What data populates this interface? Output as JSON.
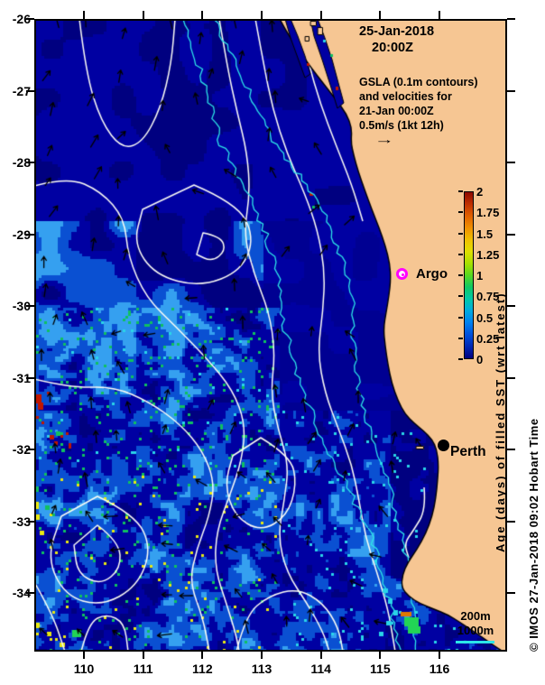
{
  "figure": {
    "kind": "satellite SST-age map with GSLA contours and velocity vectors",
    "region": "Western Australia coast near Perth"
  },
  "title": {
    "line1": "25-Jan-2018",
    "line2": "20:00Z"
  },
  "annotation": {
    "lines": [
      "GSLA (0.1m contours)",
      "and velocities for",
      "21-Jan 00:00Z",
      "0.5m/s (1kt 12h)"
    ],
    "arrow_symbol": "→"
  },
  "axes": {
    "lat_tick_labels": [
      "-26",
      "-27",
      "-28",
      "-29",
      "-30",
      "-31",
      "-32",
      "-33",
      "-34"
    ],
    "lon_tick_labels": [
      "110",
      "111",
      "112",
      "113",
      "114",
      "115",
      "116"
    ],
    "lat_range": [
      -26,
      -34.8
    ],
    "lon_range": [
      109.2,
      117.1
    ]
  },
  "colorbar": {
    "label": "Age (days) of filled SST (wrt latest)",
    "tick_labels": [
      "2",
      "1.75",
      "1.5",
      "1.25",
      "1",
      "0.75",
      "0.5",
      "0.25",
      "0"
    ],
    "value_min": 0,
    "value_max": 2,
    "gradient_bottom_to_top": [
      "#000080",
      "#0028b4",
      "#0050dc",
      "#0080f0",
      "#00aae0",
      "#00c8a8",
      "#10c864",
      "#58d820",
      "#a8e000",
      "#e0e000",
      "#f0c000",
      "#f09000",
      "#e06000",
      "#c03000",
      "#8c0800"
    ]
  },
  "markers": {
    "argo": {
      "label": "Argo",
      "ring_color": "#ff00ff"
    },
    "perth": {
      "label": "Perth",
      "dot_color": "#000000"
    }
  },
  "depth_legend": {
    "label_200": "200m",
    "label_1000": "1000m",
    "line_color": "#2ce4e8"
  },
  "credit": "© IMOS 27-Jan-2018 09:02 Hobart Time",
  "map_colors": {
    "land": "#f6c693",
    "coast_outline": "#000000",
    "ocean_base": "#0000a2",
    "ocean_dark": "#000080",
    "ocean_dark2": "#000092",
    "ocean_medium": "#0a50d2",
    "ocean_light": "#35a0f0",
    "contour": "#fdfdf6",
    "isobath": "#2ce4e8",
    "arrow": "#000000",
    "speck_green": "#10c060",
    "speck_bright_green": "#22d455",
    "speck_yellow": "#e8e812",
    "speck_red": "#c01600",
    "speck_cyan": "#2ad4e8",
    "speck_orange": "#e07800"
  }
}
